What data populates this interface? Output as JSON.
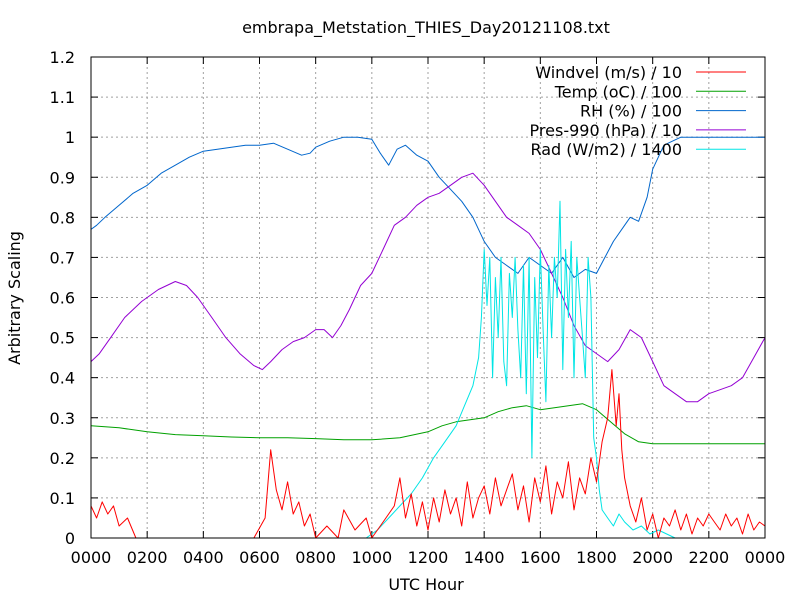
{
  "chart_data": {
    "type": "line",
    "title": "embrapa_Metstation_THIES_Day20121108.txt",
    "xlabel": "UTC Hour",
    "ylabel": "Arbitrary Scaling",
    "xlim": [
      0,
      24
    ],
    "ylim": [
      0,
      1.2
    ],
    "grid": true,
    "legend_position": "top-right",
    "x_ticks": [
      0,
      2,
      4,
      6,
      8,
      10,
      12,
      14,
      16,
      18,
      20,
      22,
      24
    ],
    "x_tick_labels": [
      "0000",
      "0200",
      "0400",
      "0600",
      "0800",
      "1000",
      "1200",
      "1400",
      "1600",
      "1800",
      "2000",
      "2200",
      "0000"
    ],
    "y_ticks": [
      0,
      0.1,
      0.2,
      0.3,
      0.4,
      0.5,
      0.6,
      0.7,
      0.8,
      0.9,
      1,
      1.1,
      1.2
    ],
    "y_tick_labels": [
      "0",
      "0.1",
      "0.2",
      "0.3",
      "0.4",
      "0.5",
      "0.6",
      "0.7",
      "0.8",
      "0.9",
      "1",
      "1.1",
      "1.2"
    ],
    "series": [
      {
        "name": "Windvel (m/s) / 10",
        "color": "#ff0000",
        "x": [
          0,
          0.2,
          0.4,
          0.6,
          0.8,
          1.0,
          1.3,
          1.6,
          2.0,
          3.0,
          4.0,
          5.0,
          5.8,
          6.2,
          6.4,
          6.6,
          6.8,
          7.0,
          7.2,
          7.4,
          7.6,
          7.8,
          8.0,
          8.4,
          8.8,
          9.0,
          9.4,
          9.8,
          10.0,
          10.4,
          10.8,
          11.0,
          11.2,
          11.4,
          11.6,
          11.8,
          12.0,
          12.2,
          12.4,
          12.6,
          12.8,
          13.0,
          13.2,
          13.4,
          13.6,
          13.8,
          14.0,
          14.2,
          14.4,
          14.6,
          14.8,
          15.0,
          15.2,
          15.4,
          15.6,
          15.8,
          16.0,
          16.2,
          16.4,
          16.6,
          16.8,
          17.0,
          17.2,
          17.4,
          17.6,
          17.8,
          18.0,
          18.2,
          18.4,
          18.55,
          18.7,
          18.8,
          18.9,
          19.0,
          19.2,
          19.4,
          19.6,
          19.8,
          20.0,
          20.2,
          20.4,
          20.6,
          20.8,
          21.0,
          21.2,
          21.4,
          21.6,
          21.8,
          22.0,
          22.2,
          22.4,
          22.6,
          22.8,
          23.0,
          23.2,
          23.4,
          23.6,
          23.8,
          24.0
        ],
        "y": [
          0.08,
          0.05,
          0.09,
          0.06,
          0.08,
          0.03,
          0.05,
          0.0,
          0.0,
          0.0,
          0.0,
          0.0,
          0.0,
          0.05,
          0.22,
          0.12,
          0.07,
          0.14,
          0.06,
          0.09,
          0.03,
          0.06,
          0.0,
          0.03,
          0.0,
          0.07,
          0.02,
          0.05,
          0.0,
          0.04,
          0.08,
          0.15,
          0.05,
          0.11,
          0.03,
          0.09,
          0.02,
          0.1,
          0.04,
          0.12,
          0.06,
          0.1,
          0.03,
          0.14,
          0.05,
          0.1,
          0.13,
          0.06,
          0.15,
          0.08,
          0.12,
          0.16,
          0.07,
          0.13,
          0.04,
          0.15,
          0.09,
          0.18,
          0.06,
          0.14,
          0.1,
          0.19,
          0.07,
          0.15,
          0.11,
          0.2,
          0.14,
          0.24,
          0.3,
          0.42,
          0.28,
          0.36,
          0.22,
          0.15,
          0.08,
          0.04,
          0.1,
          0.02,
          0.06,
          0.0,
          0.05,
          0.03,
          0.07,
          0.02,
          0.06,
          0.01,
          0.05,
          0.03,
          0.06,
          0.04,
          0.02,
          0.06,
          0.03,
          0.05,
          0.01,
          0.06,
          0.02,
          0.04,
          0.03
        ]
      },
      {
        "name": "Temp (oC) / 100",
        "color": "#00a000",
        "x": [
          0,
          1,
          2,
          3,
          4,
          5,
          6,
          7,
          8,
          9,
          10,
          11,
          12,
          12.5,
          13,
          13.5,
          14,
          14.5,
          15,
          15.5,
          16,
          16.5,
          17,
          17.5,
          18,
          18.5,
          19,
          19.5,
          20,
          21,
          22,
          23,
          24
        ],
        "y": [
          0.28,
          0.275,
          0.265,
          0.258,
          0.255,
          0.252,
          0.25,
          0.25,
          0.248,
          0.245,
          0.245,
          0.25,
          0.265,
          0.28,
          0.29,
          0.295,
          0.3,
          0.315,
          0.325,
          0.33,
          0.32,
          0.325,
          0.33,
          0.335,
          0.32,
          0.29,
          0.26,
          0.24,
          0.235,
          0.235,
          0.235,
          0.235,
          0.235
        ]
      },
      {
        "name": "RH (%) / 100",
        "color": "#0066cc",
        "x": [
          0,
          0.2,
          0.5,
          1.0,
          1.5,
          2.0,
          2.5,
          3.0,
          3.5,
          4.0,
          4.5,
          5.0,
          5.5,
          6.0,
          6.5,
          7.0,
          7.5,
          7.8,
          8.0,
          8.5,
          9.0,
          9.5,
          10.0,
          10.3,
          10.6,
          10.9,
          11.2,
          11.6,
          12.0,
          12.4,
          12.8,
          13.2,
          13.6,
          14.0,
          14.4,
          14.8,
          15.2,
          15.6,
          16.0,
          16.4,
          16.8,
          17.2,
          17.6,
          18.0,
          18.3,
          18.6,
          19.0,
          19.2,
          19.5,
          19.8,
          20.0,
          20.4,
          21.0,
          22.0,
          23.0,
          24.0
        ],
        "y": [
          0.77,
          0.78,
          0.8,
          0.83,
          0.86,
          0.88,
          0.91,
          0.93,
          0.95,
          0.965,
          0.97,
          0.975,
          0.98,
          0.98,
          0.985,
          0.97,
          0.955,
          0.96,
          0.975,
          0.99,
          1.0,
          1.0,
          0.995,
          0.96,
          0.93,
          0.97,
          0.98,
          0.955,
          0.94,
          0.9,
          0.87,
          0.84,
          0.8,
          0.74,
          0.7,
          0.68,
          0.66,
          0.7,
          0.68,
          0.66,
          0.7,
          0.65,
          0.67,
          0.66,
          0.7,
          0.74,
          0.78,
          0.8,
          0.79,
          0.85,
          0.92,
          0.98,
          1.0,
          1.0,
          1.0,
          1.0
        ]
      },
      {
        "name": "Pres-990 (hPa) / 10",
        "color": "#9400d3",
        "x": [
          0,
          0.3,
          0.7,
          1.2,
          1.8,
          2.4,
          3.0,
          3.4,
          3.8,
          4.3,
          4.8,
          5.3,
          5.8,
          6.1,
          6.4,
          6.8,
          7.2,
          7.6,
          8.0,
          8.3,
          8.6,
          8.9,
          9.2,
          9.6,
          10.0,
          10.4,
          10.8,
          11.2,
          11.6,
          12.0,
          12.4,
          12.8,
          13.2,
          13.6,
          14.0,
          14.4,
          14.8,
          15.2,
          15.6,
          16.0,
          16.4,
          16.8,
          17.2,
          17.6,
          18.0,
          18.4,
          18.8,
          19.2,
          19.6,
          20.0,
          20.4,
          20.8,
          21.2,
          21.6,
          22.0,
          22.4,
          22.8,
          23.2,
          23.6,
          24.0
        ],
        "y": [
          0.44,
          0.46,
          0.5,
          0.55,
          0.59,
          0.62,
          0.64,
          0.63,
          0.6,
          0.55,
          0.5,
          0.46,
          0.43,
          0.42,
          0.44,
          0.47,
          0.49,
          0.5,
          0.52,
          0.52,
          0.5,
          0.53,
          0.57,
          0.63,
          0.66,
          0.72,
          0.78,
          0.8,
          0.83,
          0.85,
          0.86,
          0.88,
          0.9,
          0.91,
          0.88,
          0.84,
          0.8,
          0.78,
          0.76,
          0.72,
          0.66,
          0.6,
          0.53,
          0.48,
          0.46,
          0.44,
          0.47,
          0.52,
          0.5,
          0.44,
          0.38,
          0.36,
          0.34,
          0.34,
          0.36,
          0.37,
          0.38,
          0.4,
          0.45,
          0.5
        ]
      },
      {
        "name": "Rad (W/m2) / 1400",
        "color": "#00e5e5",
        "x": [
          0,
          9.8,
          10.2,
          10.6,
          11.0,
          11.4,
          11.8,
          12.2,
          12.6,
          13.0,
          13.3,
          13.6,
          13.8,
          13.9,
          14.0,
          14.1,
          14.2,
          14.3,
          14.4,
          14.5,
          14.6,
          14.7,
          14.8,
          14.9,
          15.0,
          15.1,
          15.2,
          15.3,
          15.4,
          15.5,
          15.6,
          15.7,
          15.8,
          15.9,
          16.0,
          16.1,
          16.2,
          16.3,
          16.4,
          16.5,
          16.6,
          16.7,
          16.8,
          16.9,
          17.0,
          17.1,
          17.2,
          17.3,
          17.4,
          17.5,
          17.6,
          17.7,
          17.8,
          17.9,
          18.0,
          18.1,
          18.2,
          18.4,
          18.6,
          18.8,
          19.0,
          19.3,
          19.6,
          19.9,
          20.2,
          20.5,
          20.8,
          21.0,
          24.0
        ],
        "y": [
          0.0,
          0.0,
          0.02,
          0.05,
          0.08,
          0.11,
          0.15,
          0.2,
          0.24,
          0.28,
          0.33,
          0.38,
          0.45,
          0.55,
          0.72,
          0.58,
          0.7,
          0.4,
          0.65,
          0.5,
          0.7,
          0.44,
          0.38,
          0.66,
          0.55,
          0.7,
          0.52,
          0.4,
          0.68,
          0.36,
          0.7,
          0.2,
          0.65,
          0.45,
          0.72,
          0.52,
          0.34,
          0.68,
          0.5,
          0.7,
          0.6,
          0.84,
          0.42,
          0.72,
          0.55,
          0.74,
          0.4,
          0.7,
          0.6,
          0.5,
          0.4,
          0.7,
          0.6,
          0.25,
          0.2,
          0.12,
          0.07,
          0.05,
          0.03,
          0.06,
          0.04,
          0.02,
          0.03,
          0.01,
          0.02,
          0.01,
          0.0,
          0.0,
          0.0
        ]
      }
    ]
  }
}
